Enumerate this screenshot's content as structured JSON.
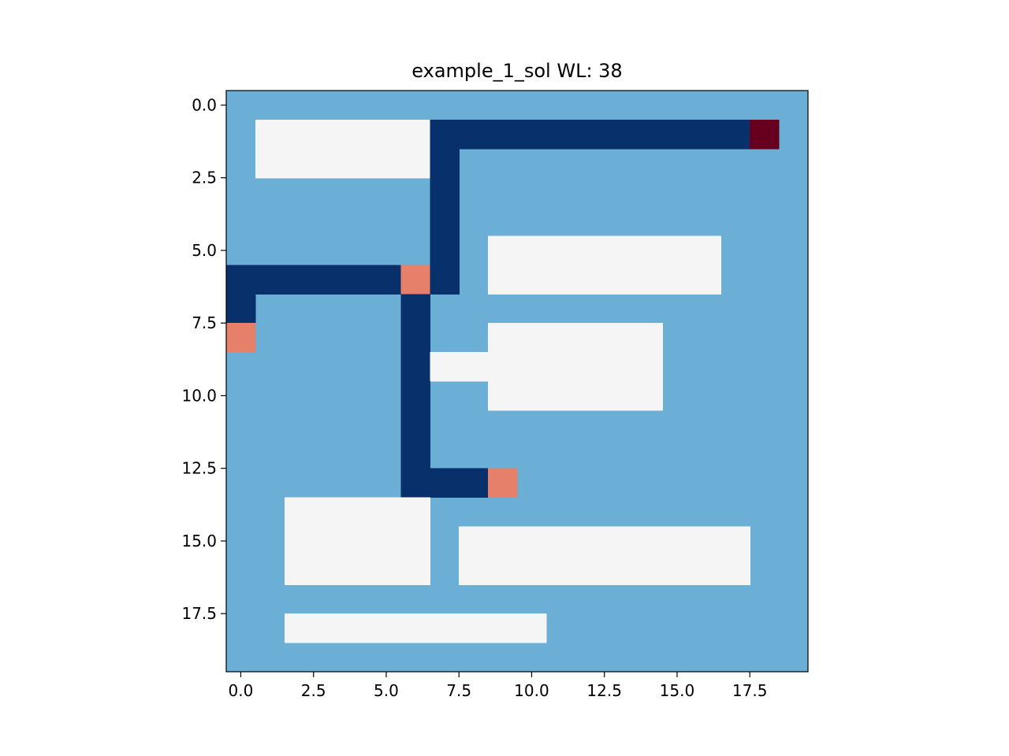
{
  "chart_data": {
    "type": "heatmap",
    "title": "example_1_sol WL: 38",
    "xlabel": "",
    "ylabel": "",
    "grid": false,
    "legend": "none",
    "xlim": [
      -0.5,
      19.5
    ],
    "ylim": [
      19.5,
      -0.5
    ],
    "y_axis_inverted": true,
    "xticks": [
      0.0,
      2.5,
      5.0,
      7.5,
      10.0,
      12.5,
      15.0,
      17.5
    ],
    "yticks": [
      0.0,
      2.5,
      5.0,
      7.5,
      10.0,
      12.5,
      15.0,
      17.5
    ],
    "xtick_labels": [
      "0.0",
      "2.5",
      "5.0",
      "7.5",
      "10.0",
      "12.5",
      "15.0",
      "17.5"
    ],
    "ytick_labels": [
      "0.0",
      "2.5",
      "5.0",
      "7.5",
      "10.0",
      "12.5",
      "15.0",
      "17.5"
    ],
    "grid_size": [
      20,
      20
    ],
    "background_color": "#6baed6",
    "cell_kinds": {
      "obstacle": "#f5f5f5",
      "route": "#08306b",
      "pin": "#e6806a",
      "source": "#67001f"
    },
    "obstacles": [
      {
        "rows": [
          1,
          2
        ],
        "cols": [
          1,
          6
        ]
      },
      {
        "rows": [
          5,
          6
        ],
        "cols": [
          9,
          16
        ]
      },
      {
        "rows": [
          8,
          10
        ],
        "cols": [
          9,
          14
        ]
      },
      {
        "rows": [
          9,
          9
        ],
        "cols": [
          7,
          8
        ]
      },
      {
        "rows": [
          14,
          16
        ],
        "cols": [
          2,
          6
        ]
      },
      {
        "rows": [
          15,
          16
        ],
        "cols": [
          8,
          17
        ]
      },
      {
        "rows": [
          18,
          18
        ],
        "cols": [
          2,
          10
        ]
      }
    ],
    "route_cells": [
      [
        1,
        7
      ],
      [
        1,
        8
      ],
      [
        1,
        9
      ],
      [
        1,
        10
      ],
      [
        1,
        11
      ],
      [
        1,
        12
      ],
      [
        1,
        13
      ],
      [
        1,
        14
      ],
      [
        1,
        15
      ],
      [
        1,
        16
      ],
      [
        1,
        17
      ],
      [
        2,
        7
      ],
      [
        3,
        7
      ],
      [
        4,
        7
      ],
      [
        5,
        7
      ],
      [
        6,
        7
      ],
      [
        6,
        0
      ],
      [
        6,
        1
      ],
      [
        6,
        2
      ],
      [
        6,
        3
      ],
      [
        6,
        4
      ],
      [
        6,
        5
      ],
      [
        7,
        0
      ],
      [
        7,
        6
      ],
      [
        8,
        6
      ],
      [
        9,
        6
      ],
      [
        10,
        6
      ],
      [
        11,
        6
      ],
      [
        12,
        6
      ],
      [
        13,
        6
      ],
      [
        13,
        7
      ],
      [
        13,
        8
      ]
    ],
    "pin_cells": [
      [
        6,
        6
      ],
      [
        8,
        0
      ],
      [
        13,
        9
      ]
    ],
    "source_cells": [
      [
        1,
        18
      ]
    ]
  }
}
